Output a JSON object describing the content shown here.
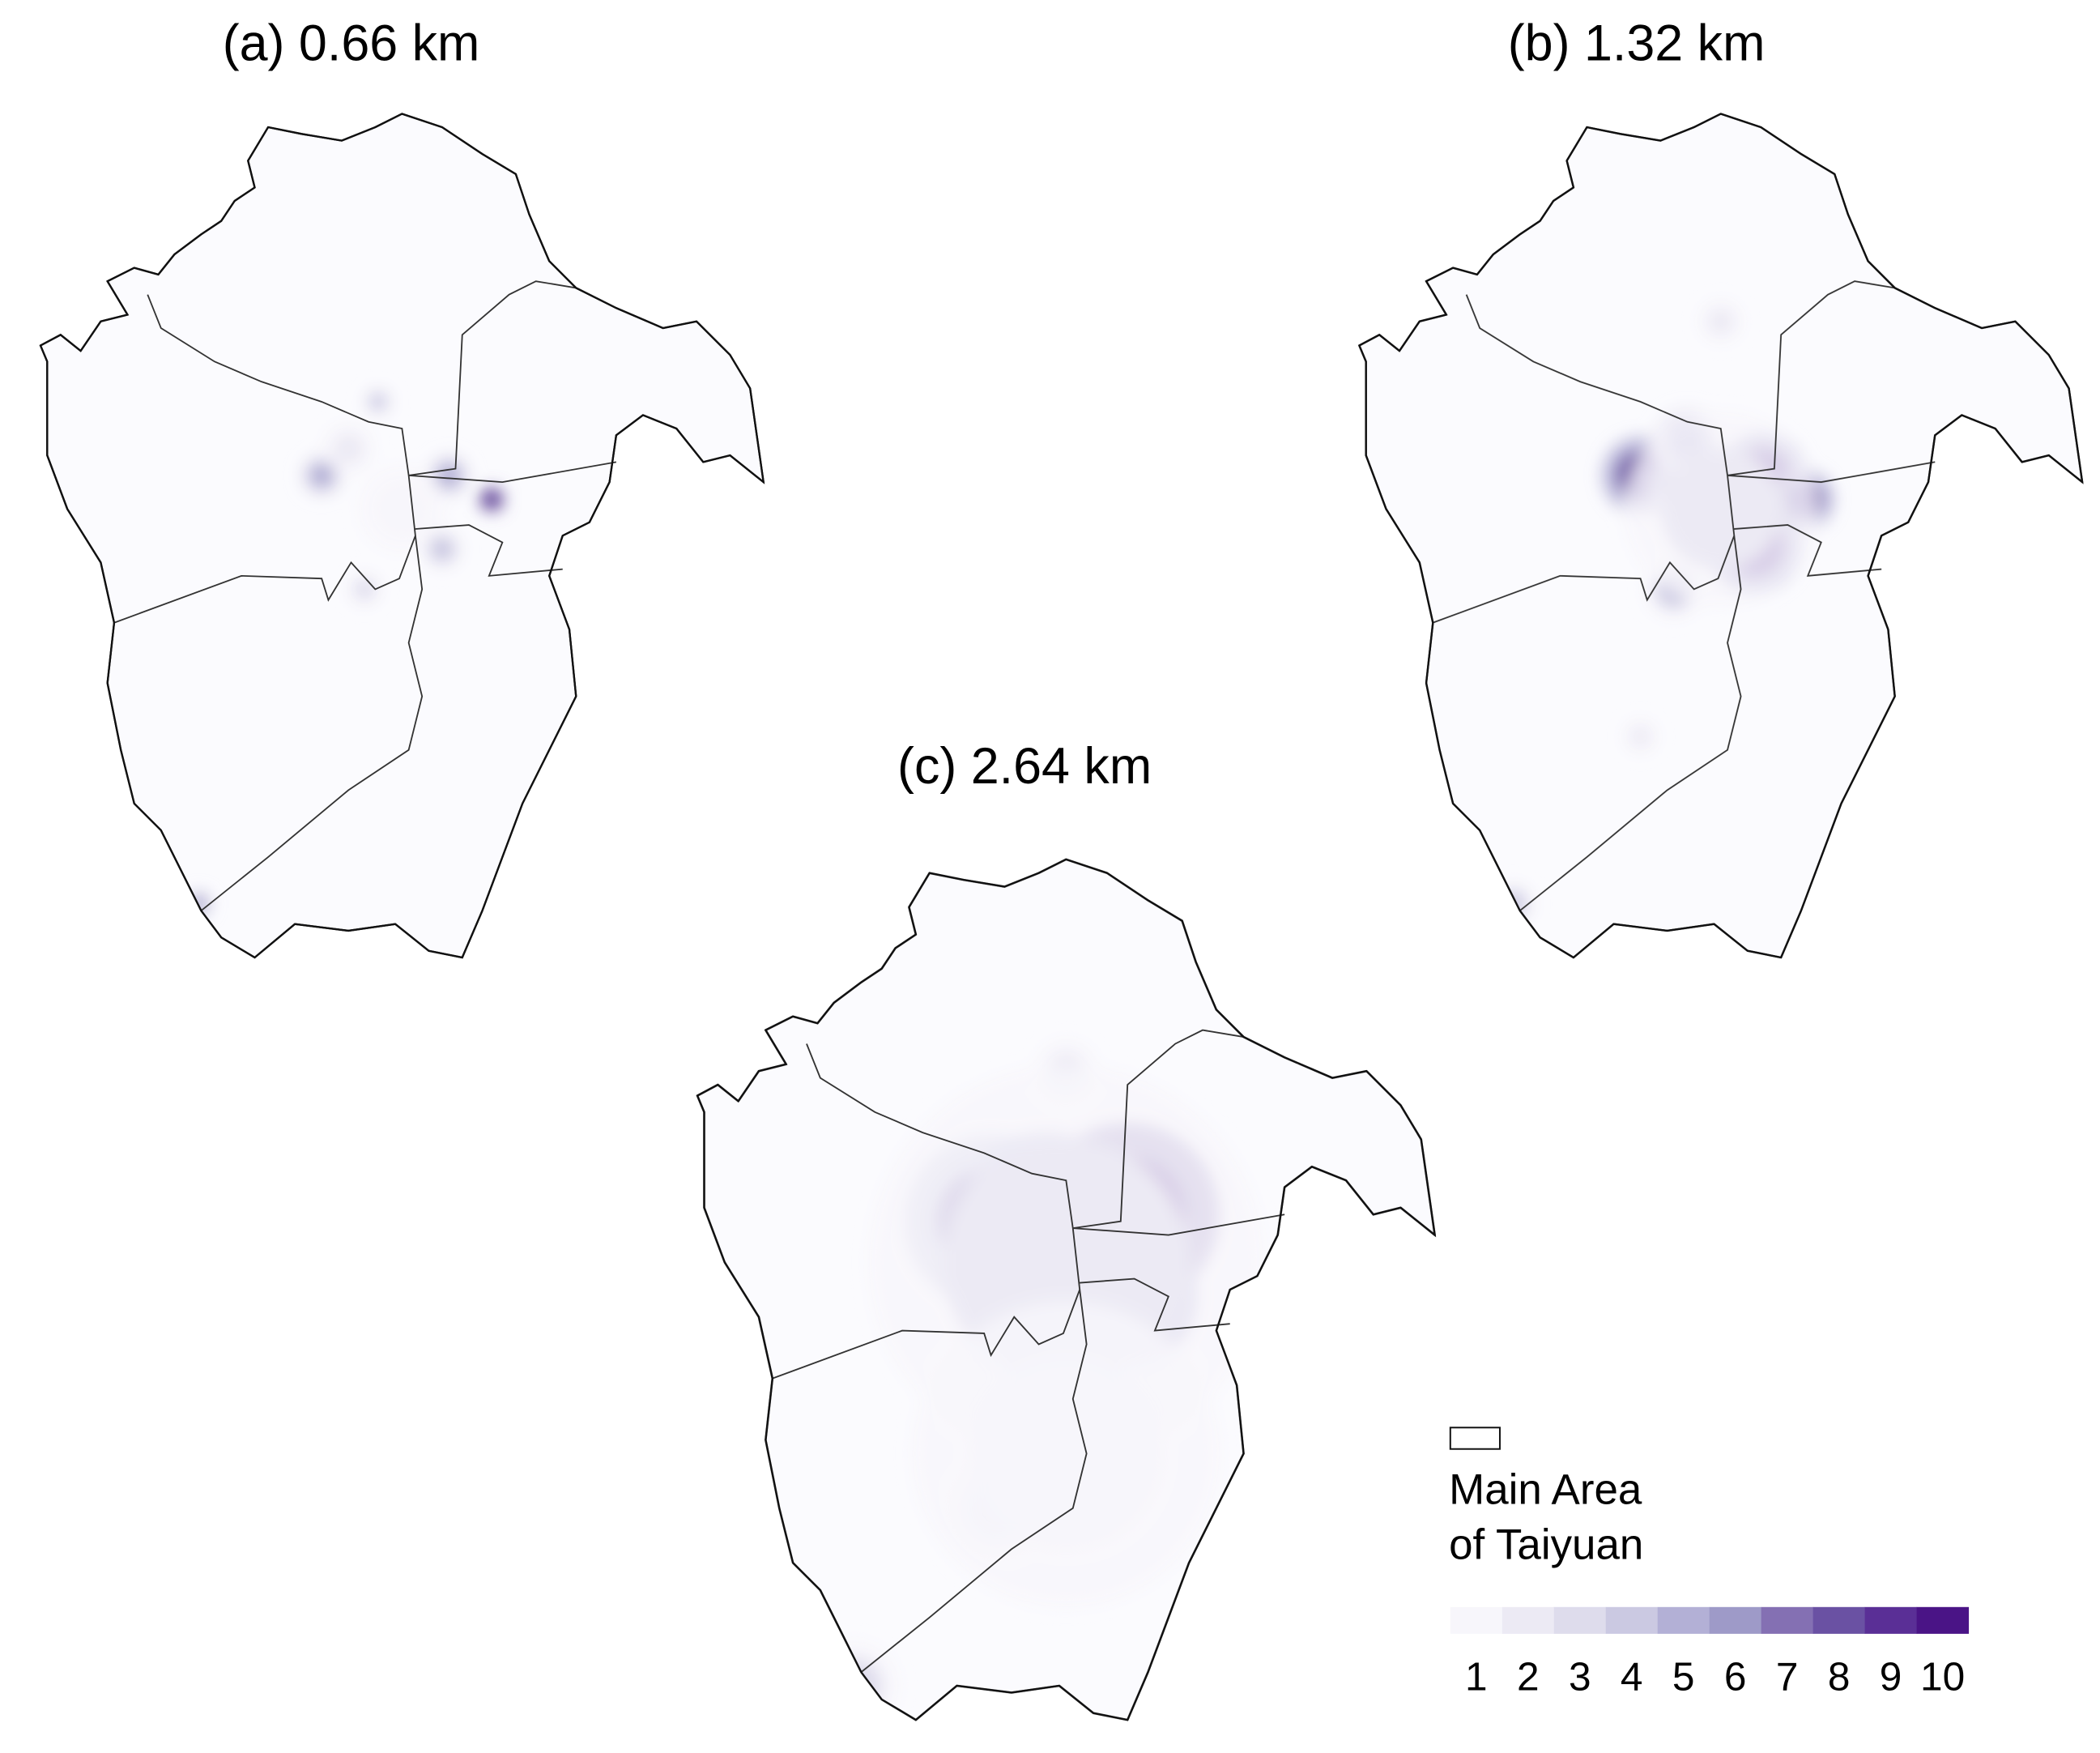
{
  "panels": [
    {
      "title": "(a) 0.66 km"
    },
    {
      "title": "(b) 1.32 km"
    },
    {
      "title": "(c) 2.64 km"
    }
  ],
  "legend": {
    "label_lines": [
      "Main Area",
      "of Taiyuan"
    ],
    "classes": [
      1,
      2,
      3,
      4,
      5,
      6,
      7,
      8,
      9,
      10
    ],
    "colors": [
      "#f7f6fb",
      "#eceaf4",
      "#dedcec",
      "#cbc9e2",
      "#b3b0d6",
      "#9e9ac8",
      "#8470b3",
      "#6a51a3",
      "#5a2f96",
      "#4a1486"
    ]
  }
}
